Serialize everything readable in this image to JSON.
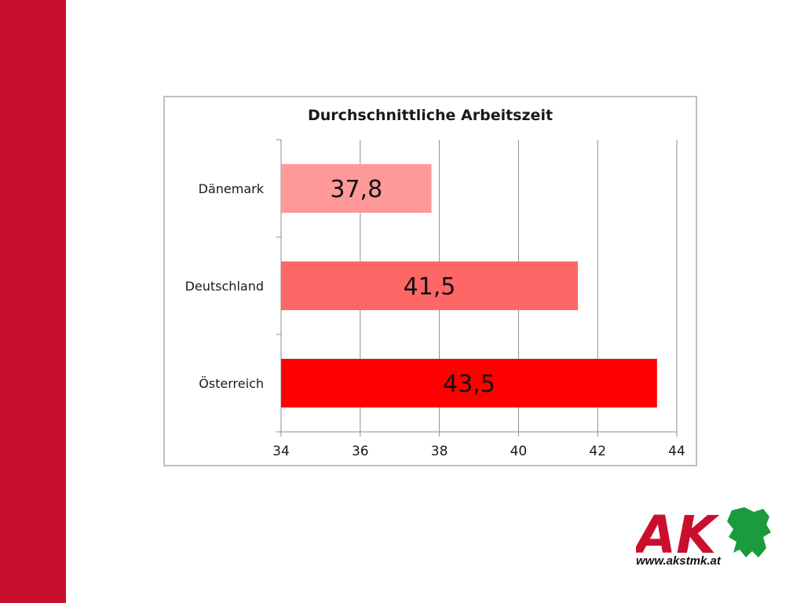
{
  "chart_data": {
    "type": "bar",
    "orientation": "horizontal",
    "title": "Durchschnittliche Arbeitszeit",
    "categories": [
      "Dänemark",
      "Deutschland",
      "Österreich"
    ],
    "values": [
      37.8,
      41.5,
      43.5
    ],
    "value_labels": [
      "37,8",
      "41,5",
      "43,5"
    ],
    "bar_colors": [
      "#ff9999",
      "#ff6666",
      "#ff0000"
    ],
    "xlim": [
      34,
      44
    ],
    "xticks": [
      34,
      36,
      38,
      40,
      42,
      44
    ],
    "grid": true,
    "xlabel": "",
    "ylabel": ""
  },
  "logo": {
    "text": "AK",
    "url": "www.akstmk.at",
    "colors": {
      "ak": "#c8102e",
      "panther": "#1a9b3c"
    }
  },
  "theme": {
    "sidebar_color": "#c8102e"
  }
}
